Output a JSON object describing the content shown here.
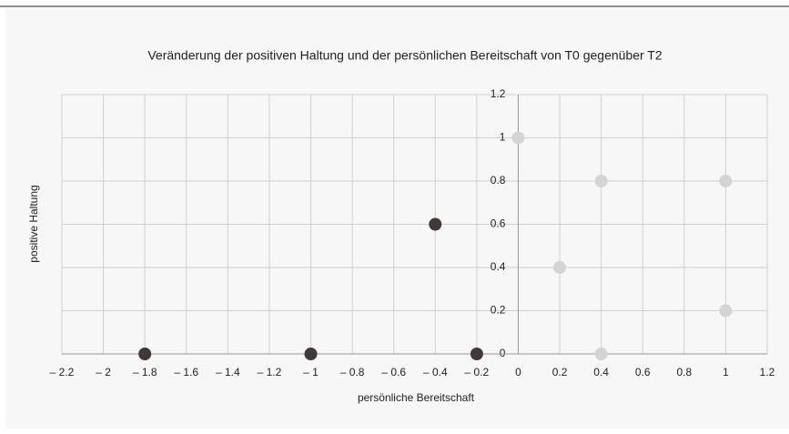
{
  "chart_data": {
    "type": "scatter",
    "title": "Veränderung der positiven Haltung und der persönlichen Bereitschaft von T0 gegenüber T2",
    "x_label": "persönliche Bereitschaft",
    "y_label": "positive Haltung",
    "series": [
      {
        "color": "#3f3a39",
        "x": [
          -1.8,
          -1,
          -0.4,
          -0.2
        ],
        "values": [
          0,
          0,
          0.6,
          0
        ]
      },
      {
        "color": "#d4d4d4",
        "x": [
          0,
          0.2,
          0.4,
          0.4,
          1,
          1
        ],
        "values": [
          1,
          0.4,
          0.8,
          0,
          0.8,
          0.2
        ]
      }
    ],
    "xlim": [
      -2.2,
      1.2
    ],
    "ylim": [
      0,
      1.2
    ],
    "xticks": [
      {
        "value": -2.2,
        "label": "– 2.2"
      },
      {
        "value": -2,
        "label": "– 2"
      },
      {
        "value": -1.8,
        "label": "– 1.8"
      },
      {
        "value": -1.6,
        "label": "– 1.6"
      },
      {
        "value": -1.4,
        "label": "– 1.4"
      },
      {
        "value": -1.2,
        "label": "– 1.2"
      },
      {
        "value": -1,
        "label": "– 1"
      },
      {
        "value": -0.8,
        "label": "– 0.8"
      },
      {
        "value": -0.6,
        "label": "– 0.6"
      },
      {
        "value": -0.4,
        "label": "– 0.4"
      },
      {
        "value": -0.2,
        "label": "– 0.2"
      },
      0,
      0.2,
      0.4,
      0.6,
      0.8,
      1,
      1.2
    ],
    "yticks": [
      0,
      0.2,
      0.4,
      0.6,
      0.8,
      1,
      1.2
    ],
    "grid": true
  }
}
